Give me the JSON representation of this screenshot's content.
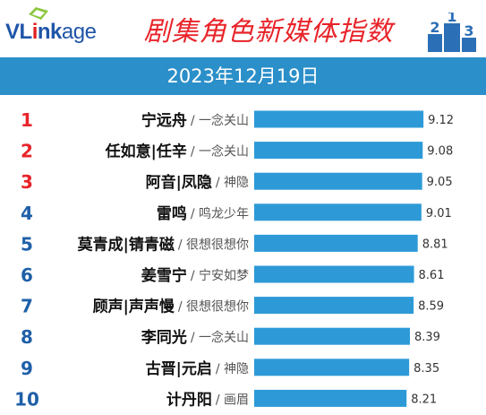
{
  "header": {
    "logo_text": "VLinkage",
    "title": "剧集角色新媒体指数",
    "podium_digits": [
      "2",
      "1",
      "3"
    ]
  },
  "date": "2023年12月19日",
  "colors": {
    "bar": "#2d9ad7",
    "rank_top": "#e8242a",
    "rank_other": "#1f5fa8",
    "date_bar": "#2b8fc9",
    "title": "#e8242a"
  },
  "chart_data": {
    "type": "bar",
    "orientation": "horizontal",
    "title": "剧集角色新媒体指数",
    "xlabel": "",
    "ylabel": "",
    "xlim": [
      0,
      9.5
    ],
    "grid": false,
    "rows": [
      {
        "rank": "1",
        "character": "宁远舟",
        "drama": "一念关山",
        "value": 9.12
      },
      {
        "rank": "2",
        "character": "任如意|任辛",
        "drama": "一念关山",
        "value": 9.08
      },
      {
        "rank": "3",
        "character": "阿音|凤隐",
        "drama": "神隐",
        "value": 9.05
      },
      {
        "rank": "4",
        "character": "雷鸣",
        "drama": "鸣龙少年",
        "value": 9.01
      },
      {
        "rank": "5",
        "character": "莫青成|锖青磁",
        "drama": "很想很想你",
        "value": 8.81
      },
      {
        "rank": "6",
        "character": "姜雪宁",
        "drama": "宁安如梦",
        "value": 8.61
      },
      {
        "rank": "7",
        "character": "顾声|声声慢",
        "drama": "很想很想你",
        "value": 8.59
      },
      {
        "rank": "8",
        "character": "李同光",
        "drama": "一念关山",
        "value": 8.39
      },
      {
        "rank": "9",
        "character": "古晋|元启",
        "drama": "神隐",
        "value": 8.35
      },
      {
        "rank": "10",
        "character": "计丹阳",
        "drama": "画眉",
        "value": 8.21
      }
    ]
  }
}
